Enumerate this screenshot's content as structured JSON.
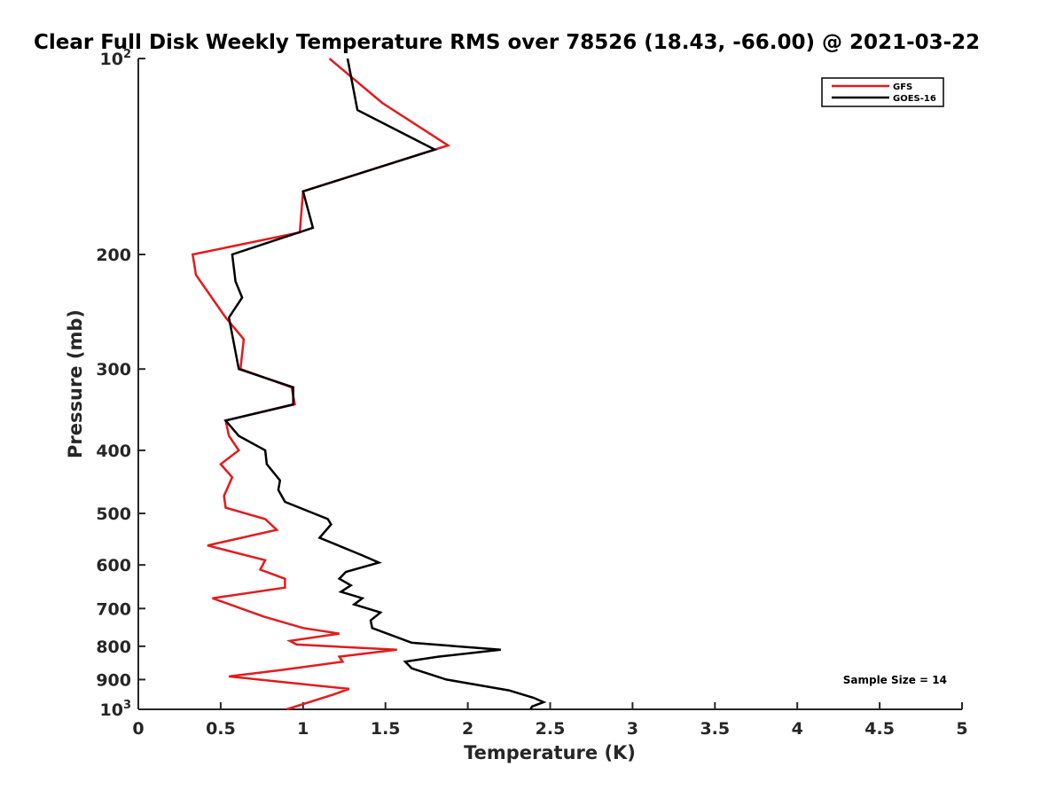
{
  "chart_data": {
    "type": "line",
    "title": "Clear Full Disk Weekly Temperature RMS over 78526 (18.43, -66.00) @ 2021-03-22",
    "xlabel": "Temperature (K)",
    "ylabel": "Pressure (mb)",
    "xlim": [
      0,
      5
    ],
    "ylim": [
      100,
      1000
    ],
    "y_scale": "log",
    "y_reversed": true,
    "grid": false,
    "legend_position": "top-right",
    "x_ticks": [
      "0",
      "0.5",
      "1",
      "1.5",
      "2",
      "2.5",
      "3",
      "3.5",
      "4",
      "4.5",
      "5"
    ],
    "x_tick_values": [
      0,
      0.5,
      1,
      1.5,
      2,
      2.5,
      3,
      3.5,
      4,
      4.5,
      5
    ],
    "y_ticks": [
      {
        "value": 100,
        "base": "10",
        "exp": "2"
      },
      {
        "value": 200,
        "label": "200"
      },
      {
        "value": 300,
        "label": "300"
      },
      {
        "value": 400,
        "label": "400"
      },
      {
        "value": 500,
        "label": "500"
      },
      {
        "value": 600,
        "label": "600"
      },
      {
        "value": 700,
        "label": "700"
      },
      {
        "value": 800,
        "label": "800"
      },
      {
        "value": 900,
        "label": "900"
      },
      {
        "value": 1000,
        "base": "10",
        "exp": "3"
      }
    ],
    "annotation": "Sample Size = 14",
    "series": [
      {
        "name": "GFS",
        "color": "#e41a1c",
        "points": [
          [
            1.16,
            100
          ],
          [
            1.48,
            117
          ],
          [
            1.88,
            136
          ],
          [
            1.0,
            160
          ],
          [
            0.98,
            185
          ],
          [
            0.33,
            200
          ],
          [
            0.35,
            215
          ],
          [
            0.53,
            250
          ],
          [
            0.64,
            270
          ],
          [
            0.62,
            300
          ],
          [
            0.93,
            320
          ],
          [
            0.95,
            340
          ],
          [
            0.53,
            360
          ],
          [
            0.55,
            380
          ],
          [
            0.61,
            400
          ],
          [
            0.5,
            420
          ],
          [
            0.57,
            440
          ],
          [
            0.52,
            470
          ],
          [
            0.53,
            490
          ],
          [
            0.77,
            510
          ],
          [
            0.84,
            530
          ],
          [
            0.42,
            560
          ],
          [
            0.77,
            590
          ],
          [
            0.74,
            610
          ],
          [
            0.89,
            630
          ],
          [
            0.89,
            650
          ],
          [
            0.45,
            675
          ],
          [
            0.76,
            720
          ],
          [
            1.0,
            750
          ],
          [
            1.22,
            765
          ],
          [
            0.92,
            785
          ],
          [
            0.96,
            795
          ],
          [
            1.57,
            810
          ],
          [
            1.22,
            830
          ],
          [
            1.24,
            845
          ],
          [
            0.87,
            870
          ],
          [
            0.55,
            890
          ],
          [
            0.91,
            910
          ],
          [
            1.28,
            930
          ],
          [
            1.18,
            950
          ],
          [
            0.9,
            1000
          ]
        ]
      },
      {
        "name": "GOES-16",
        "color": "#000000",
        "points": [
          [
            1.27,
            100
          ],
          [
            1.33,
            120
          ],
          [
            1.8,
            138
          ],
          [
            1.0,
            160
          ],
          [
            1.06,
            182
          ],
          [
            0.57,
            200
          ],
          [
            0.59,
            220
          ],
          [
            0.63,
            233
          ],
          [
            0.55,
            250
          ],
          [
            0.61,
            300
          ],
          [
            0.94,
            320
          ],
          [
            0.94,
            340
          ],
          [
            0.53,
            360
          ],
          [
            0.61,
            380
          ],
          [
            0.77,
            400
          ],
          [
            0.78,
            420
          ],
          [
            0.86,
            445
          ],
          [
            0.85,
            460
          ],
          [
            0.89,
            480
          ],
          [
            1.15,
            510
          ],
          [
            1.17,
            520
          ],
          [
            1.1,
            545
          ],
          [
            1.36,
            580
          ],
          [
            1.46,
            595
          ],
          [
            1.26,
            615
          ],
          [
            1.22,
            630
          ],
          [
            1.29,
            645
          ],
          [
            1.23,
            660
          ],
          [
            1.36,
            675
          ],
          [
            1.31,
            690
          ],
          [
            1.47,
            710
          ],
          [
            1.41,
            730
          ],
          [
            1.42,
            750
          ],
          [
            1.66,
            790
          ],
          [
            2.2,
            810
          ],
          [
            1.82,
            830
          ],
          [
            1.62,
            845
          ],
          [
            1.66,
            865
          ],
          [
            1.87,
            900
          ],
          [
            2.25,
            935
          ],
          [
            2.4,
            960
          ],
          [
            2.46,
            975
          ],
          [
            2.39,
            990
          ],
          [
            2.38,
            1000
          ]
        ]
      }
    ]
  }
}
